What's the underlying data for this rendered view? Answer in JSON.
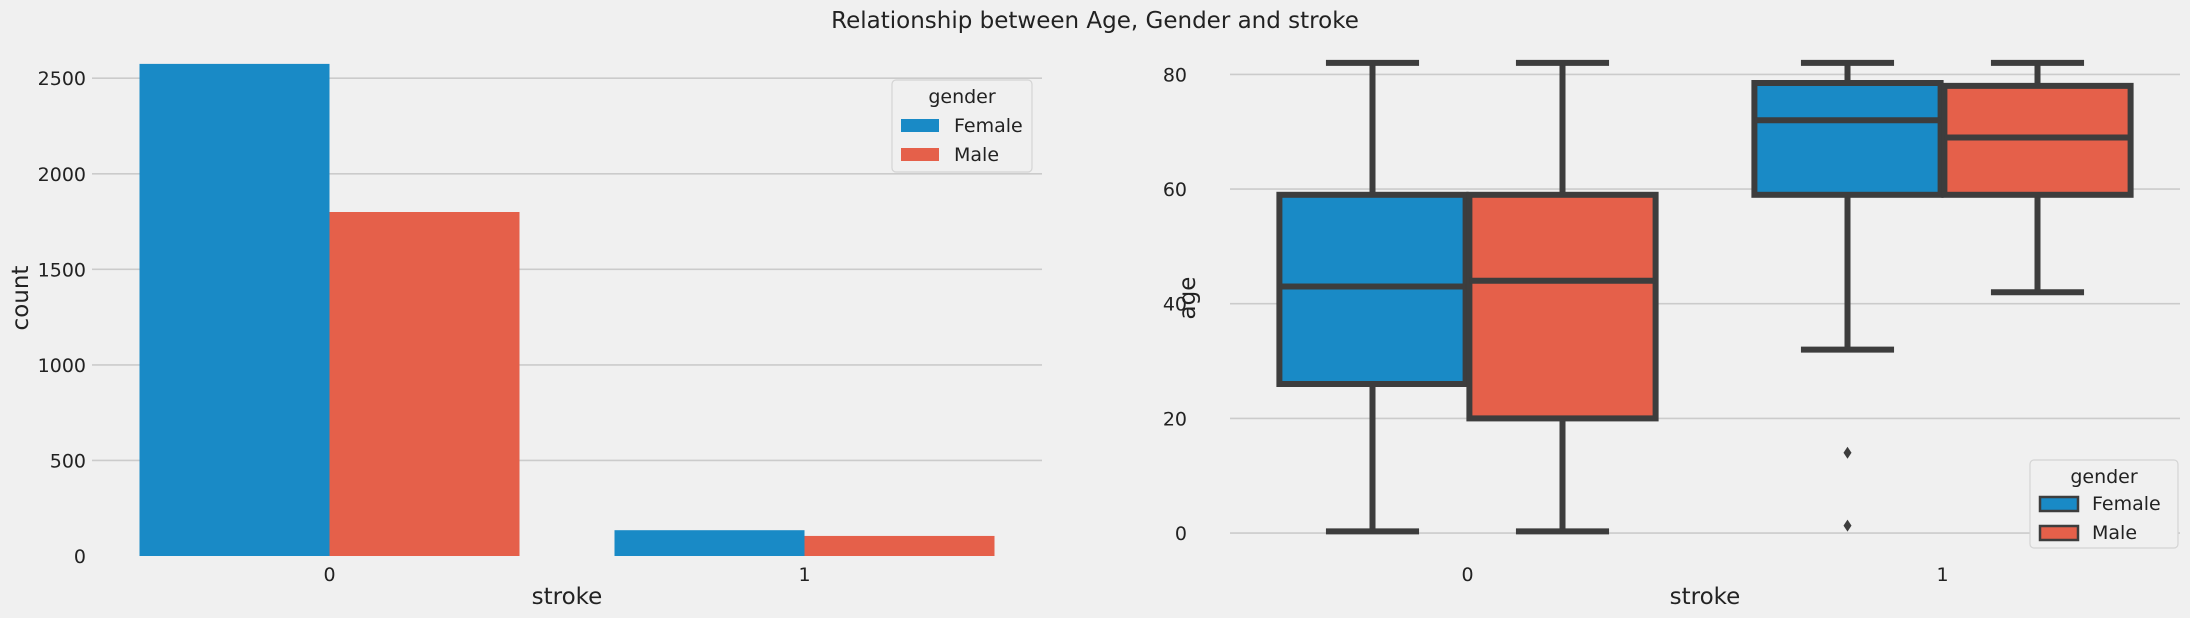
{
  "figure_title": "Relationship between Age, Gender and stroke",
  "colors": {
    "Female": "#198ac6",
    "Male": "#e5604a",
    "background": "#f0f0f0",
    "grid": "#cbcbcb",
    "box_line": "#3d3d3d"
  },
  "chart_data": [
    {
      "type": "bar",
      "xlabel": "stroke",
      "ylabel": "count",
      "categories": [
        "0",
        "1"
      ],
      "series": [
        {
          "name": "Female",
          "values": [
            2575,
            135
          ]
        },
        {
          "name": "Male",
          "values": [
            1800,
            105
          ]
        }
      ],
      "ylim": [
        0,
        2700
      ],
      "yticks": [
        0,
        500,
        1000,
        1500,
        2000,
        2500
      ],
      "grid": true,
      "legend": {
        "title": "gender",
        "placement": "top-right",
        "entries": [
          "Female",
          "Male"
        ]
      }
    },
    {
      "type": "box",
      "xlabel": "stroke",
      "ylabel": "age",
      "categories": [
        "0",
        "1"
      ],
      "series": [
        {
          "name": "Female",
          "boxes": [
            {
              "whisker_low": 0.3,
              "q1": 26,
              "median": 43,
              "q3": 59,
              "whisker_high": 82,
              "outliers": []
            },
            {
              "whisker_low": 32,
              "q1": 59,
              "median": 72,
              "q3": 78.5,
              "whisker_high": 82,
              "outliers": [
                14,
                1.3
              ]
            }
          ]
        },
        {
          "name": "Male",
          "boxes": [
            {
              "whisker_low": 0.3,
              "q1": 20,
              "median": 44,
              "q3": 59,
              "whisker_high": 82,
              "outliers": []
            },
            {
              "whisker_low": 42,
              "q1": 59,
              "median": 69,
              "q3": 78,
              "whisker_high": 82,
              "outliers": []
            }
          ]
        }
      ],
      "ylim": [
        -4,
        86
      ],
      "yticks": [
        0,
        20,
        40,
        60,
        80
      ],
      "grid": true,
      "legend": {
        "title": "gender",
        "placement": "bottom-right",
        "entries": [
          "Female",
          "Male"
        ]
      }
    }
  ]
}
